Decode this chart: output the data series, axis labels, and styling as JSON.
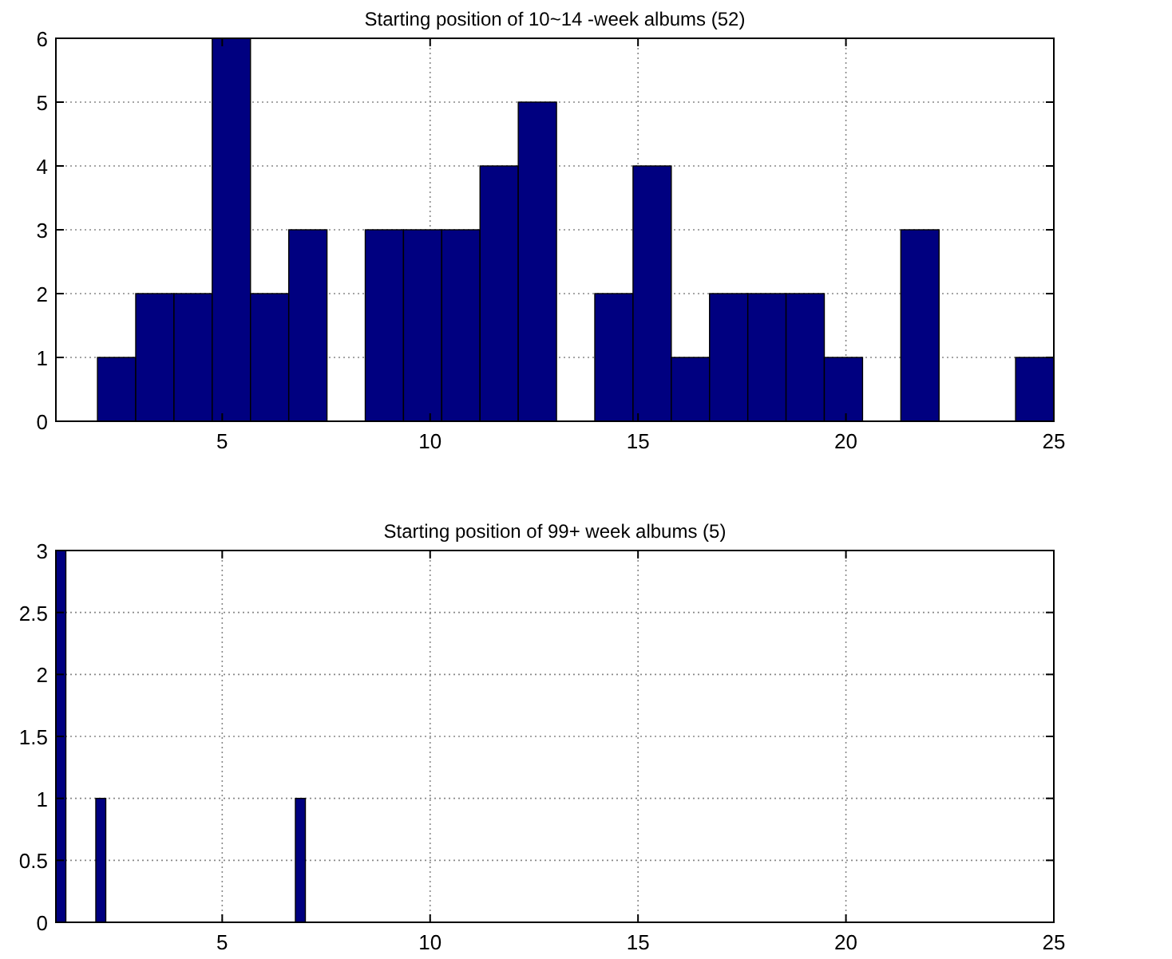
{
  "chart_data": [
    {
      "type": "histogram",
      "title": "Starting position of 10~14 -week albums (52)",
      "bins": [
        2,
        2.92,
        3.84,
        4.76,
        5.68,
        6.6,
        7.52,
        8.44,
        9.36,
        10.28,
        11.2,
        12.12,
        13.04,
        13.96,
        14.88,
        15.8,
        16.72,
        17.64,
        18.56,
        19.48,
        20.4,
        21.32,
        22.24,
        23.16,
        24.08,
        25
      ],
      "values": [
        1,
        2,
        2,
        6,
        2,
        3,
        0,
        3,
        3,
        3,
        4,
        5,
        0,
        2,
        4,
        1,
        2,
        2,
        2,
        1,
        0,
        3,
        0,
        0,
        1
      ],
      "color": "#000080",
      "xlim": [
        1,
        25
      ],
      "xticks": [
        5,
        10,
        15,
        20,
        25
      ],
      "ylim": [
        0,
        6
      ],
      "yticks": [
        0,
        1,
        2,
        3,
        4,
        5,
        6
      ],
      "grid": true
    },
    {
      "type": "histogram",
      "title": "Starting position of 99+ week albums (5)",
      "bins": [
        1,
        1.24,
        1.48,
        1.72,
        1.96,
        2.2,
        2.44,
        2.68,
        2.92,
        3.16,
        3.4,
        3.64,
        3.88,
        4.12,
        4.36,
        4.6,
        4.84,
        5.08,
        5.32,
        5.56,
        5.8,
        6.04,
        6.28,
        6.52,
        6.76,
        7
      ],
      "values": [
        3,
        0,
        0,
        0,
        1,
        0,
        0,
        0,
        0,
        0,
        0,
        0,
        0,
        0,
        0,
        0,
        0,
        0,
        0,
        0,
        0,
        0,
        0,
        0,
        1
      ],
      "color": "#000080",
      "xlim": [
        1,
        25
      ],
      "xticks": [
        5,
        10,
        15,
        20,
        25
      ],
      "ylim": [
        0,
        3
      ],
      "yticks": [
        0,
        0.5,
        1,
        1.5,
        2,
        2.5,
        3
      ],
      "grid": true
    }
  ]
}
